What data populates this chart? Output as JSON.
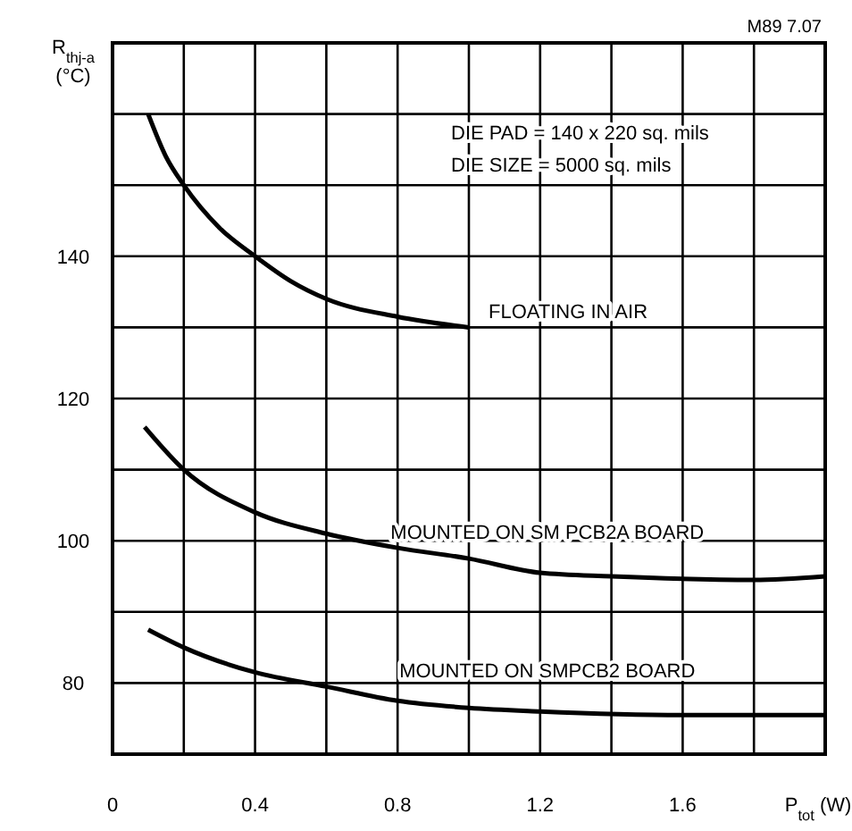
{
  "chart_data": {
    "type": "line",
    "xlabel": "P$_{tot}$ (W)",
    "ylabel": "R$_{thj-a}$\n(°C)",
    "xlim": [
      0,
      2
    ],
    "ylim": [
      70,
      170
    ],
    "xticks": [
      0,
      {
        "value": 0.2,
        "label": null
      },
      0.4,
      {
        "value": 0.6,
        "label": null
      },
      0.8,
      {
        "value": 1.0,
        "label": null
      },
      1.2,
      {
        "value": 1.4,
        "label": null
      },
      1.6,
      {
        "value": 1.8,
        "label": null
      }
    ],
    "yticks": [
      {
        "value": 70,
        "label": null
      },
      80,
      {
        "value": 90,
        "label": null
      },
      100,
      {
        "value": 110,
        "label": null
      },
      120,
      {
        "value": 130,
        "label": null
      },
      140,
      {
        "value": 150,
        "label": null
      },
      {
        "value": 160,
        "label": null
      }
    ],
    "grid": true,
    "marker": "none",
    "line_style": "solid",
    "series": [
      {
        "name": "FLOATING IN AIR",
        "color": "#000000",
        "x": [
          0.1,
          0.15,
          0.2,
          0.3,
          0.4,
          0.5,
          0.6,
          0.8,
          1.0
        ],
        "values": [
          160,
          154,
          150,
          144,
          140,
          136.5,
          134,
          131.5,
          130
        ]
      },
      {
        "name": "MOUNTED ON SM PCB2A BOARD",
        "color": "#000000",
        "x": [
          0.09,
          0.2,
          0.4,
          0.6,
          0.8,
          1.0,
          1.2,
          1.4,
          1.8,
          2.0
        ],
        "values": [
          116,
          110,
          104,
          101,
          99,
          97.5,
          95.5,
          95,
          94.5,
          95
        ]
      },
      {
        "name": "MOUNTED ON SMPCB2 BOARD",
        "color": "#000000",
        "x": [
          0.1,
          0.2,
          0.4,
          0.6,
          0.8,
          1.0,
          1.2,
          1.6,
          2.0
        ],
        "values": [
          87.5,
          85,
          81.5,
          79.5,
          77.5,
          76.5,
          76,
          75.5,
          75.5
        ]
      }
    ],
    "annotations": [
      "M89 7.07",
      "DIE PAD = 140 x 220 sq. mils",
      "DIE SIZE = 5000 sq. mils"
    ]
  }
}
